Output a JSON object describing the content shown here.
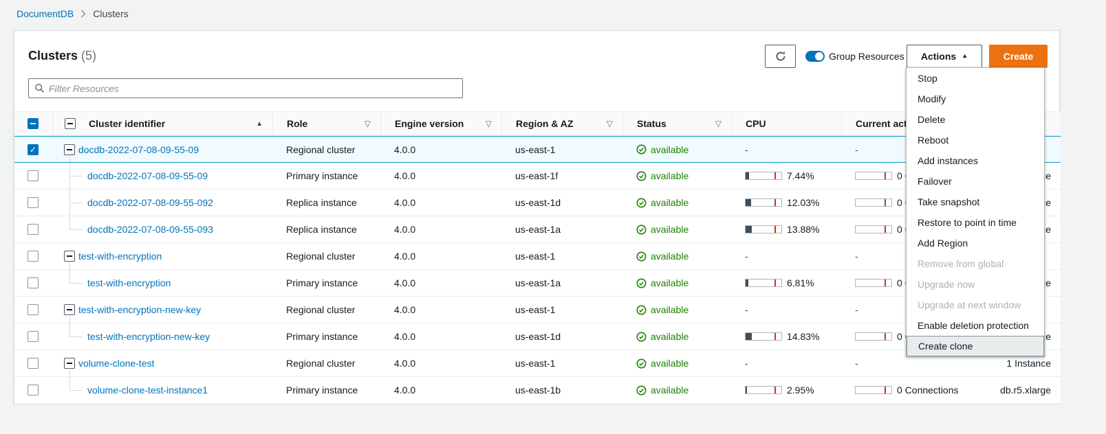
{
  "breadcrumb": {
    "root": "DocumentDB",
    "current": "Clusters"
  },
  "toolbar": {
    "title": "Clusters",
    "count": "(5)",
    "group_resources": "Group Resources",
    "actions": "Actions",
    "create": "Create"
  },
  "filter": {
    "placeholder": "Filter Resources"
  },
  "table": {
    "columns": [
      {
        "label": "Cluster identifier",
        "sort": "asc"
      },
      {
        "label": "Role",
        "filter": true
      },
      {
        "label": "Engine version",
        "filter": true
      },
      {
        "label": "Region & AZ",
        "filter": true
      },
      {
        "label": "Status",
        "filter": true
      },
      {
        "label": "CPU"
      },
      {
        "label": "Current activity"
      },
      {
        "label": ""
      }
    ],
    "rows": [
      {
        "level": "cluster",
        "tree": "parent",
        "checked": true,
        "selected": true,
        "id": "docdb-2022-07-08-09-55-09",
        "role": "Regional cluster",
        "engine": "4.0.0",
        "region": "us-east-1",
        "status": "available",
        "cpu": null,
        "activity": null,
        "size": ""
      },
      {
        "level": "instance",
        "tree": "mid",
        "checked": false,
        "selected": false,
        "id": "docdb-2022-07-08-09-55-09",
        "role": "Primary instance",
        "engine": "4.0.0",
        "region": "us-east-1f",
        "status": "available",
        "cpu": 7.44,
        "activity": "0 Connections",
        "size": "db.r5.xlarge"
      },
      {
        "level": "instance",
        "tree": "mid",
        "checked": false,
        "selected": false,
        "id": "docdb-2022-07-08-09-55-092",
        "role": "Replica instance",
        "engine": "4.0.0",
        "region": "us-east-1d",
        "status": "available",
        "cpu": 12.03,
        "activity": "0 Connections",
        "size": "db.r5.xlarge"
      },
      {
        "level": "instance",
        "tree": "end",
        "checked": false,
        "selected": false,
        "id": "docdb-2022-07-08-09-55-093",
        "role": "Replica instance",
        "engine": "4.0.0",
        "region": "us-east-1a",
        "status": "available",
        "cpu": 13.88,
        "activity": "0 Connections",
        "size": "db.r5.xlarge"
      },
      {
        "level": "cluster",
        "tree": "parent",
        "checked": false,
        "selected": false,
        "id": "test-with-encryption",
        "role": "Regional cluster",
        "engine": "4.0.0",
        "region": "us-east-1",
        "status": "available",
        "cpu": null,
        "activity": null,
        "size": ""
      },
      {
        "level": "instance",
        "tree": "end",
        "checked": false,
        "selected": false,
        "id": "test-with-encryption",
        "role": "Primary instance",
        "engine": "4.0.0",
        "region": "us-east-1a",
        "status": "available",
        "cpu": 6.81,
        "activity": "0 Connections",
        "size": "db.r5.xlarge"
      },
      {
        "level": "cluster",
        "tree": "parent",
        "checked": false,
        "selected": false,
        "id": "test-with-encryption-new-key",
        "role": "Regional cluster",
        "engine": "4.0.0",
        "region": "us-east-1",
        "status": "available",
        "cpu": null,
        "activity": null,
        "size": ""
      },
      {
        "level": "instance",
        "tree": "end",
        "checked": false,
        "selected": false,
        "id": "test-with-encryption-new-key",
        "role": "Primary instance",
        "engine": "4.0.0",
        "region": "us-east-1d",
        "status": "available",
        "cpu": 14.83,
        "activity": "0 Connections",
        "size": "db.r5.xlarge"
      },
      {
        "level": "cluster",
        "tree": "parent",
        "checked": false,
        "selected": false,
        "id": "volume-clone-test",
        "role": "Regional cluster",
        "engine": "4.0.0",
        "region": "us-east-1",
        "status": "available",
        "cpu": null,
        "activity": null,
        "size": "1 Instance"
      },
      {
        "level": "instance",
        "tree": "end",
        "checked": false,
        "selected": false,
        "id": "volume-clone-test-instance1",
        "role": "Primary instance",
        "engine": "4.0.0",
        "region": "us-east-1b",
        "status": "available",
        "cpu": 2.95,
        "activity": "0 Connections",
        "size": "db.r5.xlarge"
      }
    ]
  },
  "actions_menu": {
    "items": [
      {
        "label": "Stop"
      },
      {
        "label": "Modify"
      },
      {
        "label": "Delete"
      },
      {
        "label": "Reboot"
      },
      {
        "label": "Add instances"
      },
      {
        "label": "Failover"
      },
      {
        "label": "Take snapshot"
      },
      {
        "label": "Restore to point in time"
      },
      {
        "label": "Add Region"
      },
      {
        "label": "Remove from global",
        "disabled": true
      },
      {
        "label": "Upgrade now",
        "disabled": true
      },
      {
        "label": "Upgrade at next window",
        "disabled": true
      },
      {
        "label": "Enable deletion protection"
      },
      {
        "label": "Create clone",
        "highlighted": true
      }
    ]
  },
  "colors": {
    "accent_orange": "#ec7211",
    "link_blue": "#0073bb",
    "status_green": "#1d8102",
    "selected_row_bg": "#f1faff",
    "selected_row_border": "#00a1c9",
    "bar_fill": "#414d5c",
    "bar_tick_red": "#d13212",
    "page_bg": "#f2f3f3"
  }
}
